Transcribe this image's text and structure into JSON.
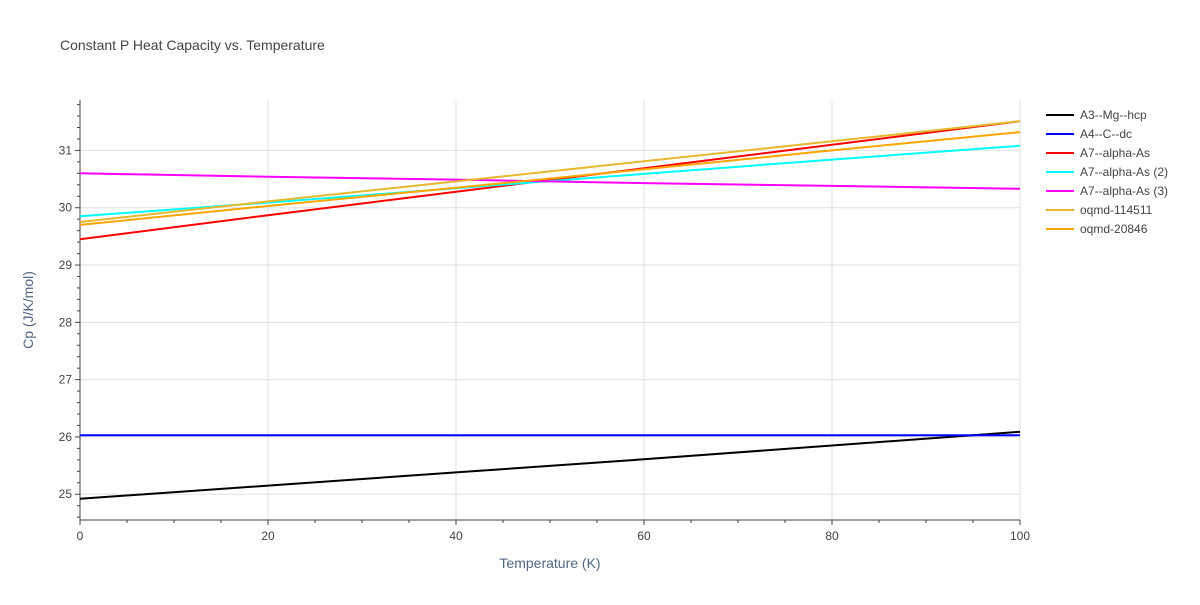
{
  "chart_data": {
    "type": "line",
    "title": "Constant P Heat Capacity vs. Temperature",
    "xlabel": "Temperature (K)",
    "ylabel": "Cp (J/K/mol)",
    "xlim": [
      0,
      100
    ],
    "ylim": [
      24.55,
      31.88
    ],
    "x_ticks": [
      0,
      20,
      40,
      60,
      80,
      100
    ],
    "y_ticks": [
      25,
      26,
      27,
      28,
      29,
      30,
      31
    ],
    "grid": true,
    "legend_position": "right",
    "series": [
      {
        "name": "A3--Mg--hcp",
        "color": "#000000",
        "x": [
          0,
          20,
          40,
          60,
          80,
          100
        ],
        "y": [
          24.92,
          25.15,
          25.38,
          25.61,
          25.85,
          26.09
        ]
      },
      {
        "name": "A4--C--dc",
        "color": "#0000ff",
        "x": [
          0,
          20,
          40,
          60,
          80,
          100
        ],
        "y": [
          26.03,
          26.03,
          26.03,
          26.03,
          26.03,
          26.03
        ]
      },
      {
        "name": "A7--alpha-As",
        "color": "#ff0000",
        "x": [
          0,
          20,
          40,
          60,
          80,
          100
        ],
        "y": [
          29.45,
          29.87,
          30.28,
          30.69,
          31.1,
          31.51
        ]
      },
      {
        "name": "A7--alpha-As (2)",
        "color": "#00ffff",
        "x": [
          0,
          20,
          40,
          60,
          80,
          100
        ],
        "y": [
          29.85,
          30.09,
          30.34,
          30.59,
          30.84,
          31.08
        ]
      },
      {
        "name": "A7--alpha-As (3)",
        "color": "#ff00ff",
        "x": [
          0,
          20,
          40,
          60,
          80,
          100
        ],
        "y": [
          30.6,
          30.54,
          30.49,
          30.43,
          30.38,
          30.33
        ]
      },
      {
        "name": "oqmd-114511",
        "color": "#e6b82e",
        "x": [
          0,
          20,
          40,
          60,
          80,
          100
        ],
        "y": [
          29.75,
          30.11,
          30.46,
          30.81,
          31.16,
          31.51
        ]
      },
      {
        "name": "oqmd-20846",
        "color": "#ffa500",
        "x": [
          0,
          20,
          40,
          60,
          80,
          100
        ],
        "y": [
          29.7,
          30.03,
          30.35,
          30.67,
          31.0,
          31.32
        ]
      }
    ]
  }
}
